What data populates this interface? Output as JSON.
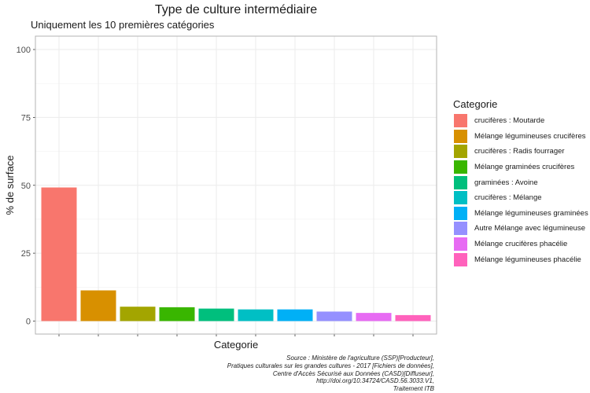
{
  "chart_data": {
    "type": "bar",
    "title": "Type de culture intermédiaire",
    "subtitle": "Uniquement les 10 premières catégories",
    "xlabel": "Categorie",
    "ylabel": "% de surface",
    "ylim": [
      0,
      100
    ],
    "yticks": [
      "0",
      "25",
      "50",
      "75",
      "100"
    ],
    "grid": true,
    "legend_position": "right",
    "legend_title": "Categorie",
    "categories": [
      "crucifères : Moutarde",
      "Mélange légumineuses crucifères",
      "crucifères : Radis fourrager",
      "Mélange graminées crucifères",
      "graminées : Avoine",
      "crucifères : Mélange",
      "Mélange légumineuses graminées",
      "Autre Mélange avec légumineuse",
      "Mélange crucifères phacélie",
      "Mélange légumineuses phacélie"
    ],
    "values": [
      49.2,
      11.3,
      5.3,
      5.1,
      4.6,
      4.3,
      4.3,
      3.5,
      3.0,
      2.2
    ],
    "colors": [
      "#F8766D",
      "#D89000",
      "#A3A500",
      "#39B600",
      "#00BF7D",
      "#00BFC4",
      "#00B0F6",
      "#9590FF",
      "#E76BF3",
      "#FF62BC"
    ]
  },
  "caption": [
    "Source : Ministère de l'agriculture (SSP)[Producteur],",
    "Pratiques culturales sur les grandes cultures - 2017 [Fichiers de données],",
    "Centre d'Accès Sécurisé aux Données (CASD)[Diffuseur],",
    "http://doi.org/10.34724/CASD.56.3033.V1,",
    "Traitement ITB"
  ]
}
